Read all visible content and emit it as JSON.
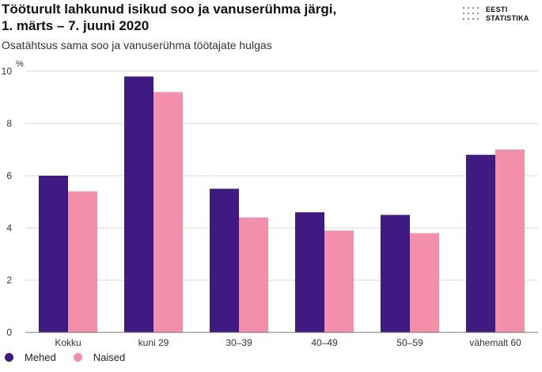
{
  "title_line1": "Tööturult lahkunud isikud soo ja vanuserühma järgi,",
  "title_line2": "1. märts – 7. juuni 2020",
  "subtitle": "Osatähtsus sama soo ja vanuserühma töötajate hulgas",
  "logo": {
    "line1": "EESTI",
    "line2": "STATISTIKA"
  },
  "colors": {
    "mehed": "#3f1a82",
    "naised": "#f48fab",
    "grid": "#d9d9d9",
    "axis": "#777777"
  },
  "chart_data": {
    "type": "bar",
    "title": "Tööturult lahkunud isikud soo ja vanuserühma järgi, 1. märts – 7. juuni 2020",
    "subtitle": "Osatähtsus sama soo ja vanuserühma töötajate hulgas",
    "ylabel": "%",
    "xlabel": "",
    "ylim": [
      0,
      10
    ],
    "yticks": [
      0,
      2,
      4,
      6,
      8,
      10
    ],
    "grid": true,
    "legend_position": "bottom-left",
    "categories": [
      "Kokku",
      "kuni 29",
      "30–39",
      "40–49",
      "50–59",
      "vähemalt 60"
    ],
    "series": [
      {
        "name": "Mehed",
        "values": [
          6.0,
          9.8,
          5.5,
          4.6,
          4.5,
          6.8
        ]
      },
      {
        "name": "Naised",
        "values": [
          5.4,
          9.2,
          4.4,
          3.9,
          3.8,
          7.0
        ]
      }
    ]
  }
}
